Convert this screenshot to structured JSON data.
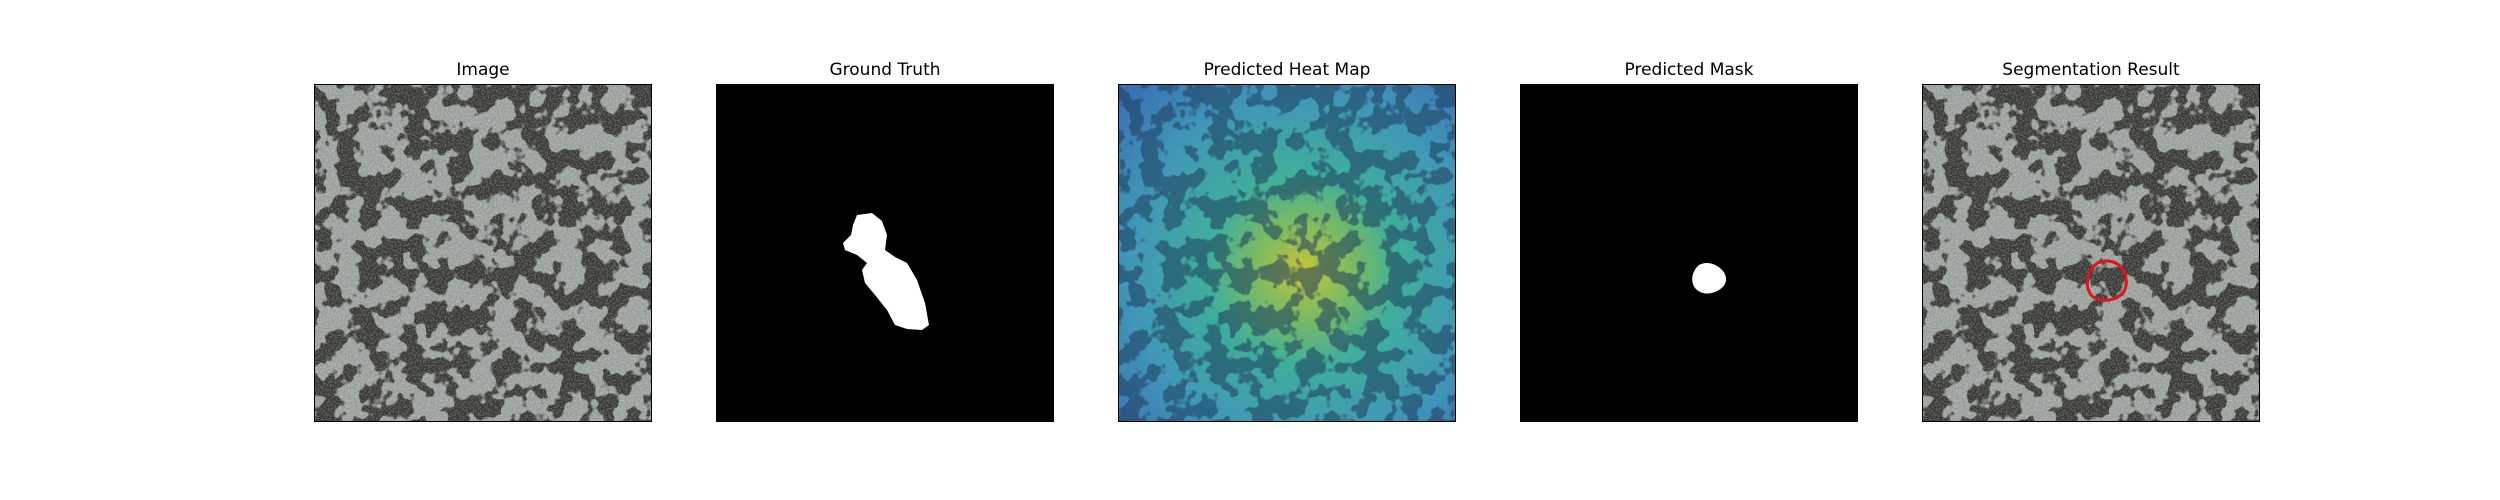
{
  "panels": [
    {
      "key": "image",
      "title": "Image",
      "icon": "granite-texture-icon"
    },
    {
      "key": "gt",
      "title": "Ground Truth",
      "icon": "ground-truth-mask-icon"
    },
    {
      "key": "heat",
      "title": "Predicted Heat Map",
      "icon": "heat-map-icon"
    },
    {
      "key": "pred",
      "title": "Predicted Mask",
      "icon": "predicted-mask-icon"
    },
    {
      "key": "seg",
      "title": "Segmentation Result",
      "icon": "segmentation-contour-icon"
    }
  ],
  "colors": {
    "texture_light": "#9aa19c",
    "texture_dark": "#3a3a38",
    "mask_background": "#000000",
    "mask_foreground": "#ffffff",
    "heat_low": "#3b6fb4",
    "heat_mid": "#3fae9a",
    "heat_high": "#c9c23a",
    "contour": "#e0151b"
  }
}
